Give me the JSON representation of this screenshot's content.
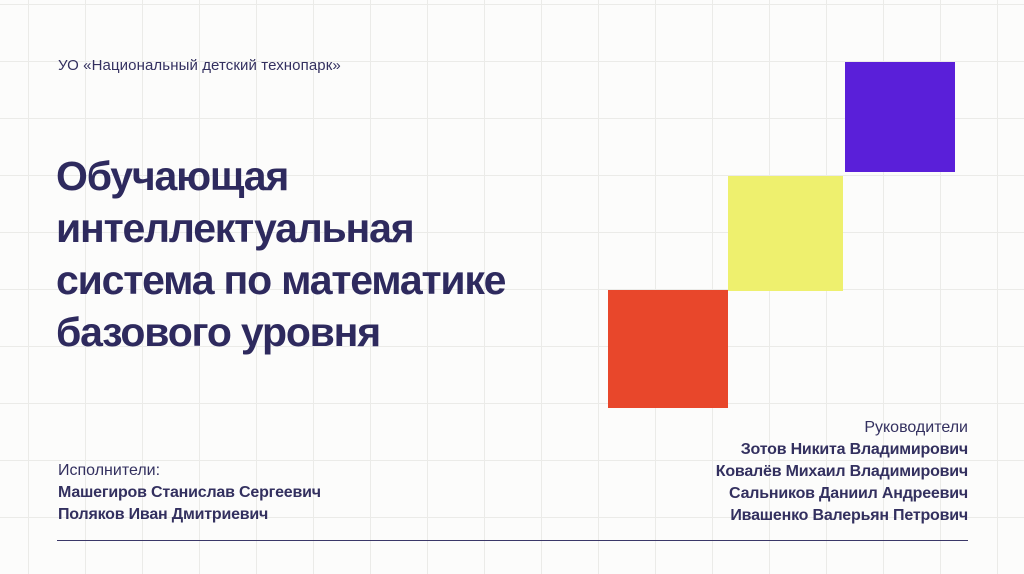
{
  "slide": {
    "organization": "УО «Национальный детский технопарк»",
    "title_lines": {
      "0": "Обучающая",
      "1": "интеллектуальная",
      "2": "система по математике",
      "3": "базового уровня"
    },
    "executors": {
      "label": "Исполнители:",
      "names": {
        "0": "Машегиров Станислав Сергеевич",
        "1": "Поляков Иван  Дмитриевич"
      }
    },
    "supervisors": {
      "label": "Руководители",
      "names": {
        "0": "Зотов Никита Владимирович",
        "1": "Ковалёв Михаил Владимирович",
        "2": "Сальников Даниил Андреевич",
        "3": "Ивашенко Валерьян Петрович"
      }
    },
    "colors": {
      "square_red": "#e8472b",
      "square_yellow": "#eef06e",
      "square_purple": "#5a1fd9",
      "text_navy": "#2e2a5e"
    }
  }
}
